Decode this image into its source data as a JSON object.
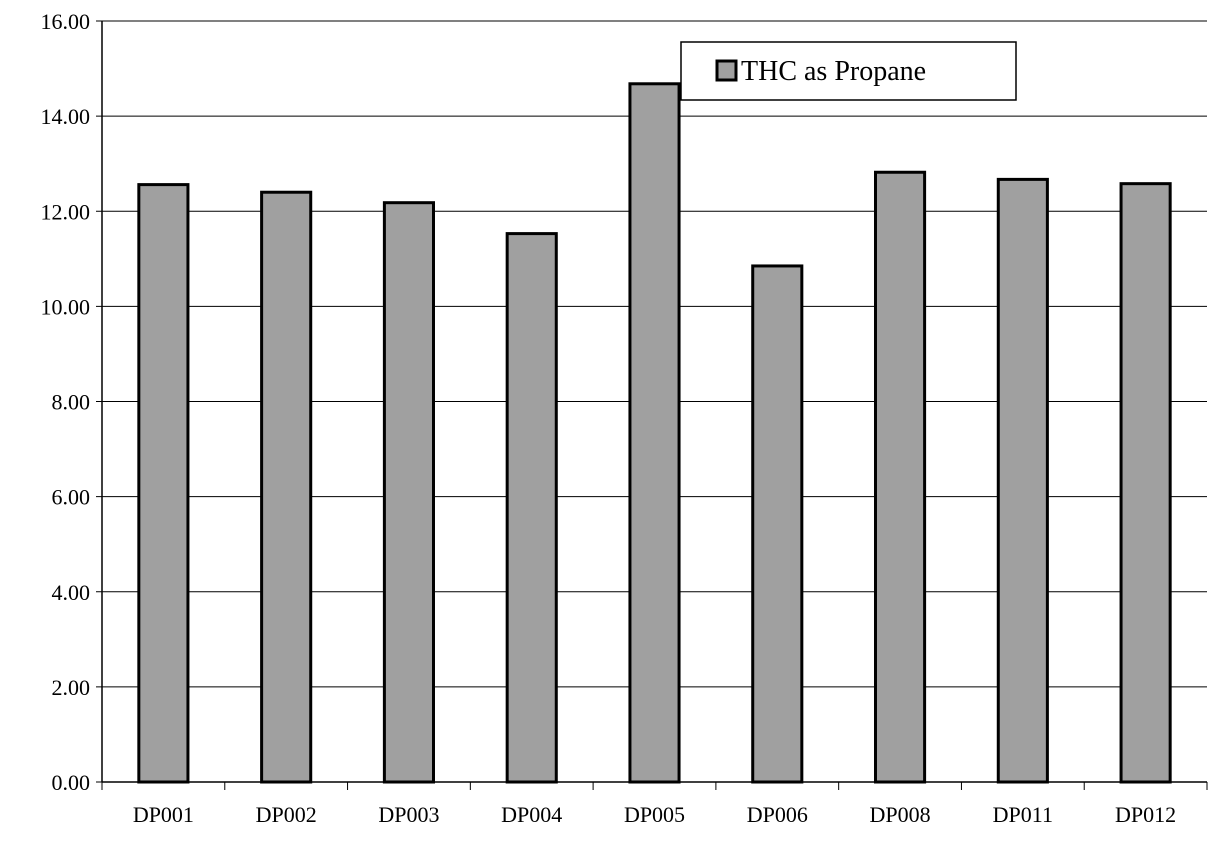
{
  "chart_data": {
    "type": "bar",
    "categories": [
      "DP001",
      "DP002",
      "DP003",
      "DP004",
      "DP005",
      "DP006",
      "DP008",
      "DP011",
      "DP012"
    ],
    "series": [
      {
        "name": "THC as Propane",
        "values": [
          12.56,
          12.4,
          12.18,
          11.53,
          14.68,
          10.85,
          12.82,
          12.67,
          12.58
        ],
        "color": "#a0a0a0"
      }
    ],
    "ylim": [
      0,
      16
    ],
    "yticks": [
      "0.00",
      "2.00",
      "4.00",
      "6.00",
      "8.00",
      "10.00",
      "12.00",
      "14.00",
      "16.00"
    ],
    "grid": true,
    "legend_position": "top-right"
  },
  "legend": {
    "label": "THC as Propane"
  }
}
